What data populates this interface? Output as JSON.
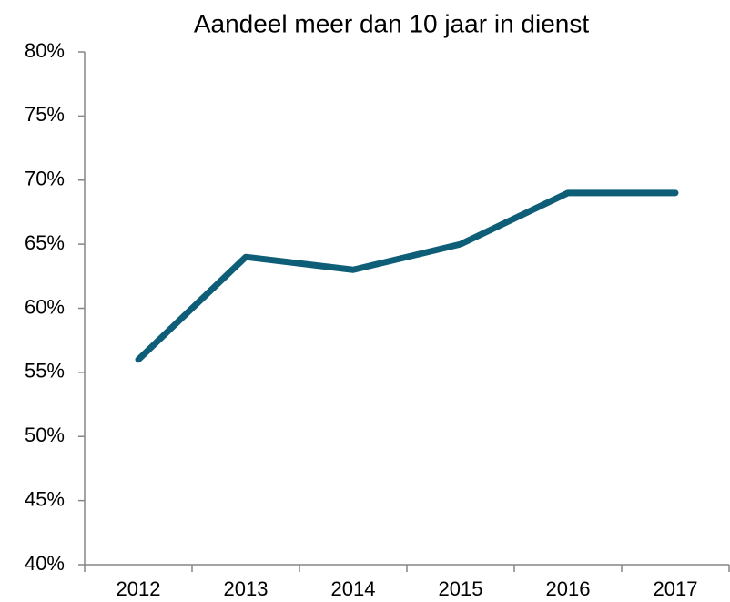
{
  "chart_data": {
    "type": "line",
    "title": "Aandeel meer dan 10 jaar in dienst",
    "categories": [
      "2012",
      "2013",
      "2014",
      "2015",
      "2016",
      "2017"
    ],
    "series": [
      {
        "name": "Aandeel",
        "color": "#0f5e78",
        "values": [
          56,
          64,
          63,
          65,
          69,
          69
        ]
      }
    ],
    "ylim": [
      40,
      80
    ],
    "yticks": [
      {
        "value": 40,
        "label": "40%"
      },
      {
        "value": 45,
        "label": "45%"
      },
      {
        "value": 50,
        "label": "50%"
      },
      {
        "value": 55,
        "label": "55%"
      },
      {
        "value": 60,
        "label": "60%"
      },
      {
        "value": 65,
        "label": "65%"
      },
      {
        "value": 70,
        "label": "70%"
      },
      {
        "value": 75,
        "label": "75%"
      },
      {
        "value": 80,
        "label": "80%"
      }
    ],
    "grid": false
  }
}
